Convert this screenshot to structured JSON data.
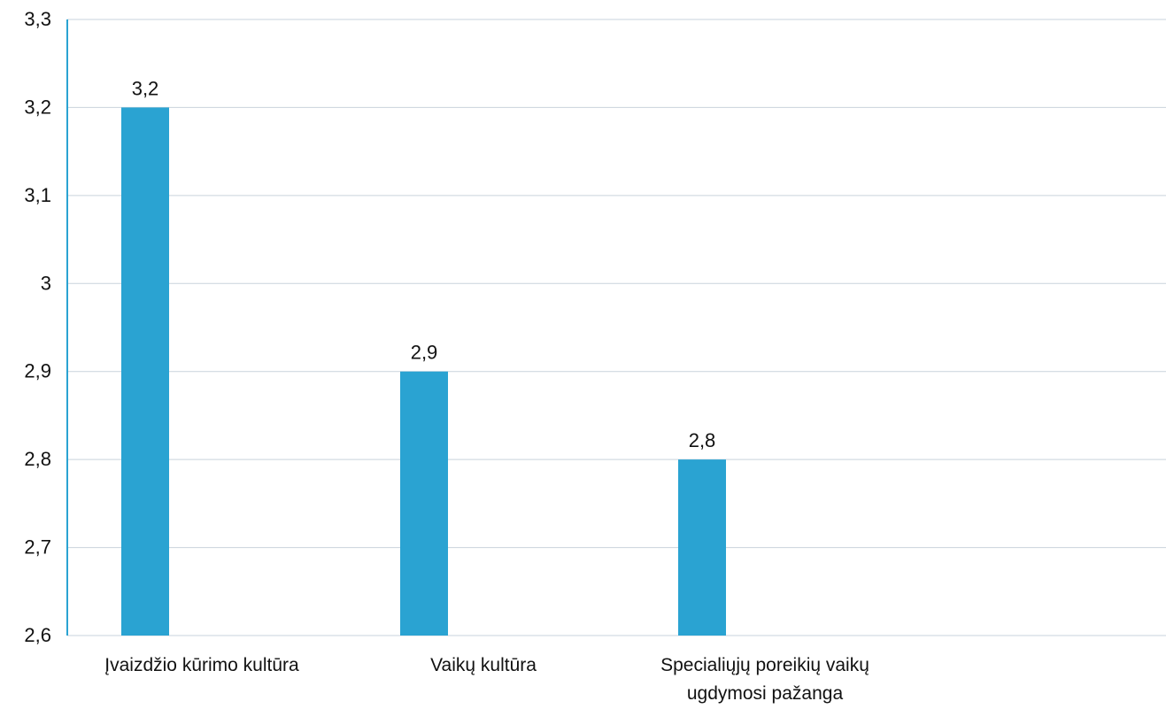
{
  "chart_data": {
    "type": "bar",
    "categories": [
      [
        "Įvaizdžio kūrimo kultūra"
      ],
      [
        "Vaikų kultūra"
      ],
      [
        "Specialiųjų poreikių vaikų",
        "ugdymosi pažanga"
      ]
    ],
    "values": [
      3.2,
      2.9,
      2.8
    ],
    "data_labels": [
      "3,2",
      "2,9",
      "2,8"
    ],
    "ylim": [
      2.6,
      3.3
    ],
    "yticks": [
      2.6,
      2.7,
      2.8,
      2.9,
      3.0,
      3.1,
      3.2,
      3.3
    ],
    "ytick_labels": [
      "2,6",
      "2,7",
      "2,8",
      "2,9",
      "3",
      "3,1",
      "3,2",
      "3,3"
    ],
    "grid": true,
    "bar_color": "#2AA3D2",
    "axis_color": "#2AA3D2",
    "grid_color": "#c9d3dc",
    "title": "",
    "xlabel": "",
    "ylabel": ""
  }
}
